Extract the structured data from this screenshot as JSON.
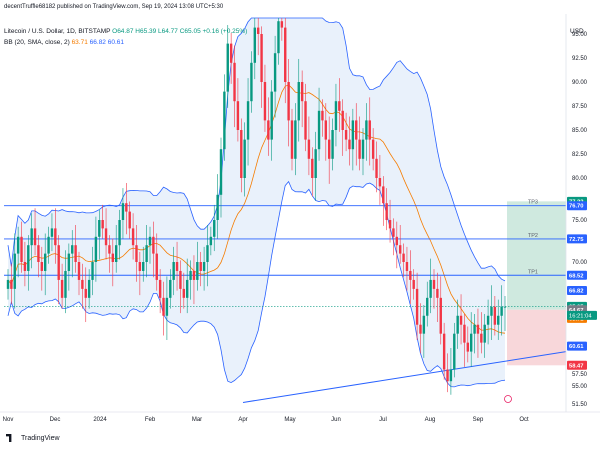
{
  "header": {
    "publish_info": "decentTruffle68182 published on TradingView.com, Sep 19, 2024 13:08 UTC+5:30"
  },
  "legend": {
    "symbol": "Litecoin / U.S. Dollar, 1D, BITSTAMP",
    "ohlc": "O64.87 H65.39 L64.77 C65.05 +0.16 (+0.25%)",
    "bb_label": "BB (20, SMA, close, 2)",
    "bb_basis": "63.71",
    "bb_upper": "66.82",
    "bb_lower": "60.61"
  },
  "axis": {
    "currency": "USD"
  },
  "footer": {
    "brand": "TradingView"
  },
  "colors": {
    "up": "#089981",
    "down": "#f23645",
    "basis": "#f57c00",
    "band": "#2962ff",
    "band_fill": "#d7e6f7",
    "target_fill": "#cfe9df",
    "stop_fill": "#f8d7da"
  },
  "chart_data": {
    "type": "candlestick",
    "title": "Litecoin / U.S. Dollar, 1D, BITSTAMP",
    "y_ticks": [
      95.0,
      92.5,
      90.0,
      87.5,
      85.0,
      82.5,
      80.0,
      75.0,
      70.0,
      57.5,
      55.0,
      51.5
    ],
    "x_ticks": [
      "Nov",
      "Dec",
      "2024",
      "Feb",
      "Mar",
      "Apr",
      "May",
      "Jun",
      "Jul",
      "Aug",
      "Sep",
      "Oct"
    ],
    "ylim": [
      51.5,
      97.5
    ],
    "price_labels": [
      {
        "value": 77.22,
        "label": "77.22",
        "color": "#089981"
      },
      {
        "value": 76.7,
        "label": "76.70",
        "color": "#2962ff"
      },
      {
        "value": 72.75,
        "label": "72.75",
        "color": "#2962ff"
      },
      {
        "value": 68.52,
        "label": "68.52",
        "color": "#2962ff"
      },
      {
        "value": 66.82,
        "label": "66.82",
        "color": "#2962ff"
      },
      {
        "value": 65.05,
        "label": "65.05",
        "color": "#089981"
      },
      {
        "value": 64.67,
        "label": "64.67",
        "color": "#787b86"
      },
      {
        "value": 63.71,
        "label": "63.71",
        "color": "#f57c00"
      },
      {
        "value": 60.61,
        "label": "60.61",
        "color": "#2962ff"
      },
      {
        "value": 58.47,
        "label": "58.47",
        "color": "#f23645"
      }
    ],
    "countdown": "16:21:04",
    "horizontal_levels": [
      {
        "name": "TP3",
        "value": 76.7
      },
      {
        "name": "TP2",
        "value": 72.75
      },
      {
        "name": "TP1",
        "value": 68.52
      }
    ],
    "position": {
      "entry": 64.67,
      "target": 77.22,
      "stop": 58.47
    },
    "trendline": {
      "from": [
        "Apr",
        51.8
      ],
      "to": [
        "Oct",
        60.0
      ]
    },
    "series": [
      {
        "name": "Close",
        "values": [
          68,
          67,
          71,
          73,
          70,
          69,
          72,
          74,
          72,
          70,
          69,
          71,
          73,
          74,
          72,
          68,
          66,
          69,
          71,
          72,
          70,
          68,
          67,
          66,
          68,
          70,
          73,
          75,
          74,
          72,
          71,
          70,
          72,
          75,
          77,
          76,
          74,
          72,
          70,
          69,
          70,
          72,
          73,
          71,
          68,
          66,
          64,
          66,
          68,
          70,
          69,
          67,
          66,
          68,
          69,
          68,
          70,
          69,
          70,
          72,
          73,
          75,
          78,
          83,
          89,
          94,
          92,
          88,
          85,
          80,
          84,
          88,
          92,
          96,
          95,
          90,
          86,
          84,
          89,
          93,
          97,
          96,
          90,
          86,
          82,
          86,
          90,
          88,
          84,
          82,
          80,
          83,
          87,
          86,
          84,
          82,
          85,
          88,
          87,
          85,
          84,
          83,
          86,
          84,
          82,
          84,
          86,
          84,
          82,
          80,
          79,
          77,
          75,
          74,
          73,
          72,
          71,
          70,
          69,
          68,
          67,
          63,
          62,
          64,
          66,
          68,
          67,
          66,
          62,
          58,
          56,
          58,
          62,
          64,
          63,
          61,
          60,
          62,
          63,
          62,
          61,
          63,
          64,
          65,
          63,
          64,
          65,
          65
        ]
      }
    ]
  }
}
